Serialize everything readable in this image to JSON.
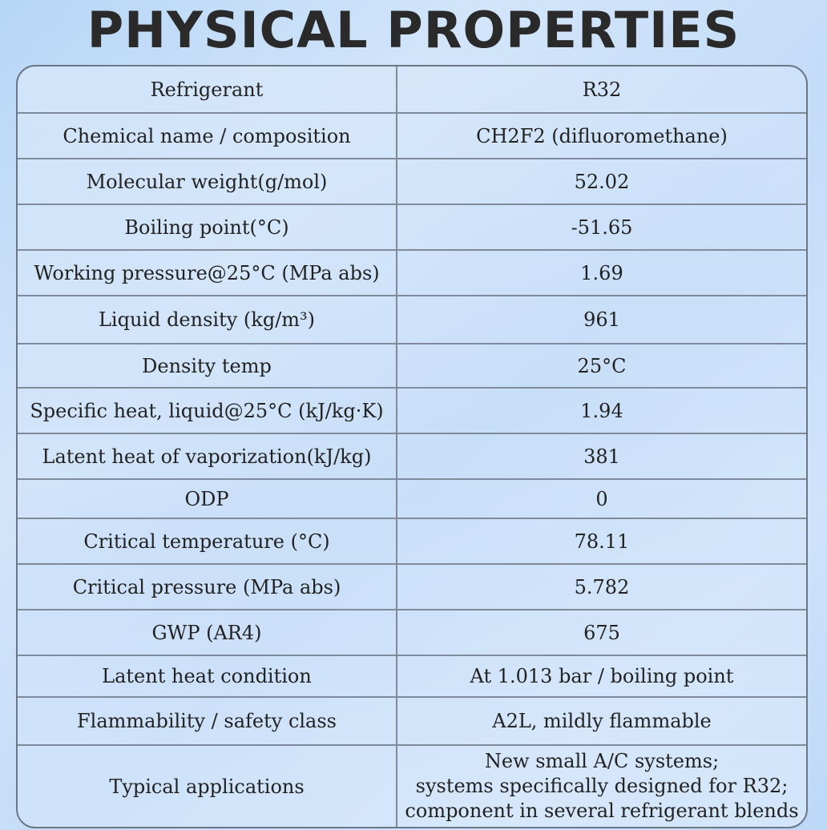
{
  "title": "PHYSICAL PROPERTIES",
  "rows": [
    {
      "property": "Refrigerant",
      "value": "R32"
    },
    {
      "property": "Chemical name / composition",
      "value": "CH2F2 (difluoromethane)"
    },
    {
      "property": "Molecular weight(g/mol)",
      "value": "52.02"
    },
    {
      "property": "Boiling point(°C)",
      "value": "-51.65"
    },
    {
      "property": "Working pressure@25°C (MPa abs)",
      "value": "1.69"
    },
    {
      "property": "Liquid density (kg/m³)",
      "value": "961"
    },
    {
      "property": "Density temp",
      "value": "25°C"
    },
    {
      "property": "Specific heat, liquid@25°C (kJ/kg·K)",
      "value": "1.94"
    },
    {
      "property": "Latent heat of vaporization(kJ/kg)",
      "value": "381"
    },
    {
      "property": "ODP",
      "value": "0"
    },
    {
      "property": "Critical temperature (°C)",
      "value": "78.11"
    },
    {
      "property": "Critical pressure (MPa abs)",
      "value": "5.782"
    },
    {
      "property": "GWP (AR4)",
      "value": "675"
    },
    {
      "property": "Latent heat condition",
      "value": "At 1.013 bar / boiling point"
    },
    {
      "property": "Flammability / safety class",
      "value": "A2L, mildly flammable"
    },
    {
      "property": "Typical applications",
      "value_lines": [
        "New small A/C systems;",
        "systems specifically designed for R32;",
        "component in several refrigerant blends"
      ]
    }
  ]
}
